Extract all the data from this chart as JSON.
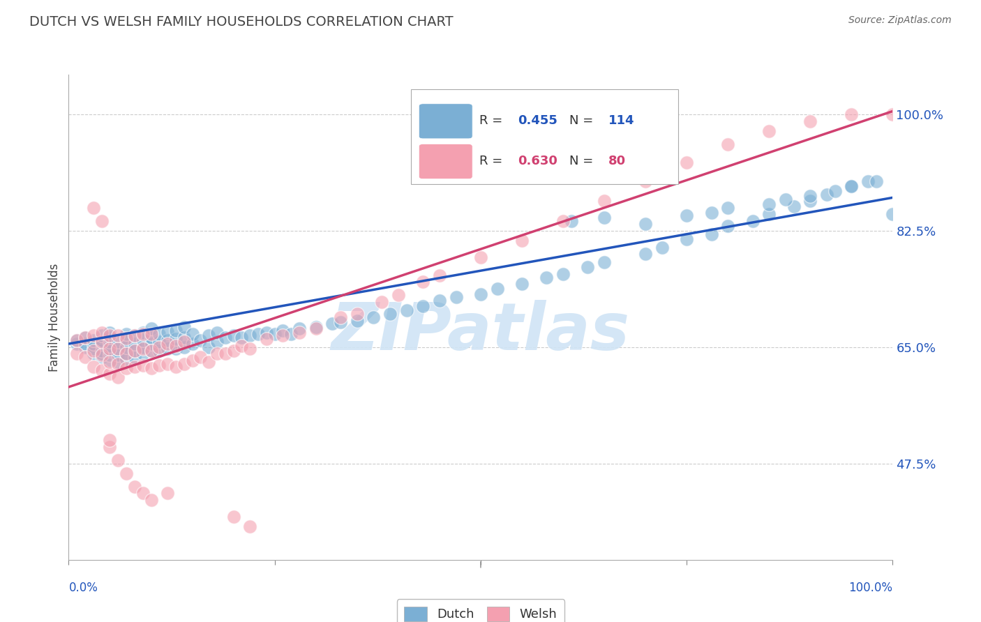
{
  "title": "DUTCH VS WELSH FAMILY HOUSEHOLDS CORRELATION CHART",
  "source": "Source: ZipAtlas.com",
  "ylabel": "Family Households",
  "dutch_R": 0.455,
  "dutch_N": 114,
  "welsh_R": 0.63,
  "welsh_N": 80,
  "dutch_color": "#7bafd4",
  "welsh_color": "#f4a0b0",
  "line_dutch_color": "#2255bb",
  "line_welsh_color": "#d04070",
  "watermark": "ZIPatlas",
  "watermark_color": "#d0e4f5",
  "background_color": "#ffffff",
  "grid_color": "#cccccc",
  "title_color": "#444444",
  "axis_label_color": "#2255bb",
  "legend_text_color": "#333333",
  "ytick_vals": [
    0.475,
    0.65,
    0.825,
    1.0
  ],
  "ytick_labels": [
    "47.5%",
    "65.0%",
    "82.5%",
    "100.0%"
  ],
  "xlim": [
    0.0,
    1.0
  ],
  "ylim": [
    0.33,
    1.06
  ],
  "dutch_scatter_x": [
    0.01,
    0.01,
    0.02,
    0.02,
    0.02,
    0.03,
    0.03,
    0.03,
    0.03,
    0.04,
    0.04,
    0.04,
    0.04,
    0.04,
    0.04,
    0.05,
    0.05,
    0.05,
    0.05,
    0.05,
    0.05,
    0.05,
    0.06,
    0.06,
    0.06,
    0.06,
    0.07,
    0.07,
    0.07,
    0.07,
    0.07,
    0.08,
    0.08,
    0.08,
    0.08,
    0.09,
    0.09,
    0.09,
    0.09,
    0.1,
    0.1,
    0.1,
    0.1,
    0.11,
    0.11,
    0.11,
    0.12,
    0.12,
    0.12,
    0.13,
    0.13,
    0.13,
    0.14,
    0.14,
    0.14,
    0.15,
    0.15,
    0.16,
    0.17,
    0.17,
    0.18,
    0.18,
    0.19,
    0.2,
    0.21,
    0.22,
    0.23,
    0.24,
    0.25,
    0.26,
    0.27,
    0.28,
    0.3,
    0.32,
    0.33,
    0.35,
    0.37,
    0.39,
    0.41,
    0.43,
    0.45,
    0.47,
    0.5,
    0.52,
    0.55,
    0.58,
    0.6,
    0.63,
    0.65,
    0.7,
    0.72,
    0.75,
    0.78,
    0.8,
    0.83,
    0.85,
    0.88,
    0.9,
    0.92,
    0.95,
    0.97,
    1.0,
    0.61,
    0.65,
    0.7,
    0.75,
    0.78,
    0.8,
    0.85,
    0.87,
    0.9,
    0.93,
    0.95,
    0.98
  ],
  "dutch_scatter_y": [
    0.655,
    0.66,
    0.65,
    0.655,
    0.665,
    0.64,
    0.648,
    0.655,
    0.66,
    0.635,
    0.64,
    0.645,
    0.655,
    0.66,
    0.668,
    0.63,
    0.638,
    0.645,
    0.652,
    0.658,
    0.665,
    0.672,
    0.628,
    0.638,
    0.648,
    0.658,
    0.632,
    0.64,
    0.65,
    0.66,
    0.67,
    0.635,
    0.645,
    0.655,
    0.668,
    0.64,
    0.65,
    0.66,
    0.672,
    0.645,
    0.655,
    0.665,
    0.678,
    0.645,
    0.658,
    0.67,
    0.648,
    0.66,
    0.673,
    0.648,
    0.662,
    0.675,
    0.65,
    0.665,
    0.68,
    0.655,
    0.67,
    0.66,
    0.65,
    0.668,
    0.658,
    0.672,
    0.665,
    0.668,
    0.665,
    0.668,
    0.67,
    0.672,
    0.67,
    0.675,
    0.67,
    0.678,
    0.68,
    0.685,
    0.688,
    0.69,
    0.695,
    0.7,
    0.705,
    0.712,
    0.72,
    0.725,
    0.73,
    0.738,
    0.745,
    0.755,
    0.76,
    0.77,
    0.778,
    0.79,
    0.8,
    0.812,
    0.82,
    0.832,
    0.84,
    0.85,
    0.862,
    0.87,
    0.88,
    0.892,
    0.9,
    0.85,
    0.84,
    0.845,
    0.835,
    0.848,
    0.852,
    0.86,
    0.865,
    0.872,
    0.878,
    0.885,
    0.892,
    0.9
  ],
  "welsh_scatter_x": [
    0.01,
    0.01,
    0.02,
    0.02,
    0.03,
    0.03,
    0.03,
    0.04,
    0.04,
    0.04,
    0.04,
    0.05,
    0.05,
    0.05,
    0.05,
    0.06,
    0.06,
    0.06,
    0.06,
    0.07,
    0.07,
    0.07,
    0.08,
    0.08,
    0.08,
    0.09,
    0.09,
    0.09,
    0.1,
    0.1,
    0.1,
    0.11,
    0.11,
    0.12,
    0.12,
    0.13,
    0.13,
    0.14,
    0.14,
    0.15,
    0.16,
    0.17,
    0.18,
    0.19,
    0.2,
    0.21,
    0.22,
    0.24,
    0.26,
    0.28,
    0.3,
    0.33,
    0.35,
    0.38,
    0.4,
    0.43,
    0.45,
    0.5,
    0.55,
    0.6,
    0.65,
    0.7,
    0.75,
    0.8,
    0.85,
    0.9,
    0.95,
    1.0,
    0.03,
    0.04,
    0.05,
    0.05,
    0.06,
    0.07,
    0.08,
    0.09,
    0.1,
    0.12,
    0.2,
    0.22
  ],
  "welsh_scatter_y": [
    0.64,
    0.66,
    0.635,
    0.665,
    0.62,
    0.645,
    0.668,
    0.615,
    0.638,
    0.658,
    0.672,
    0.61,
    0.628,
    0.648,
    0.668,
    0.605,
    0.625,
    0.648,
    0.668,
    0.618,
    0.64,
    0.663,
    0.62,
    0.645,
    0.668,
    0.622,
    0.648,
    0.67,
    0.618,
    0.645,
    0.67,
    0.622,
    0.65,
    0.625,
    0.655,
    0.62,
    0.652,
    0.625,
    0.658,
    0.63,
    0.635,
    0.628,
    0.64,
    0.64,
    0.645,
    0.652,
    0.648,
    0.662,
    0.668,
    0.672,
    0.678,
    0.695,
    0.7,
    0.718,
    0.728,
    0.748,
    0.758,
    0.785,
    0.81,
    0.84,
    0.87,
    0.9,
    0.928,
    0.955,
    0.975,
    0.99,
    1.0,
    1.0,
    0.86,
    0.84,
    0.5,
    0.51,
    0.48,
    0.46,
    0.44,
    0.43,
    0.42,
    0.43,
    0.395,
    0.38
  ]
}
